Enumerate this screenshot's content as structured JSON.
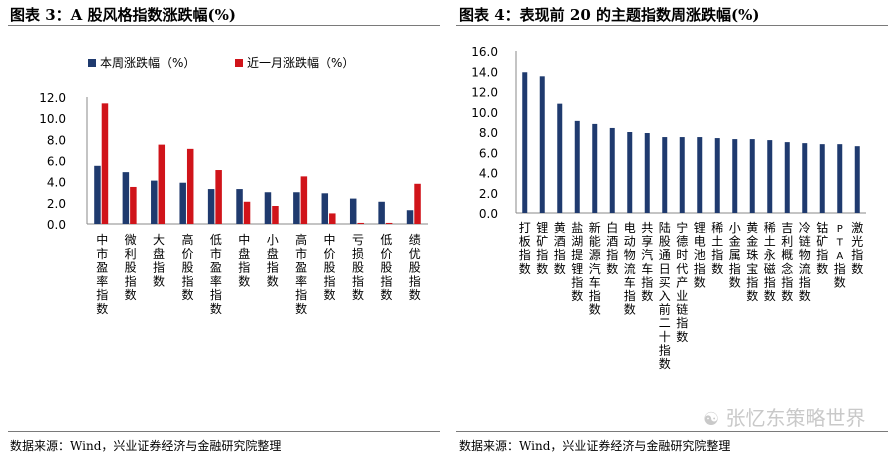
{
  "left_title": "图表 3：A 股风格指数涨跌幅(%)",
  "right_title": "图表 4：表现前 20 的主题指数周涨跌幅(%)",
  "left_source": "数据来源：Wind，兴业证券经济与金融研究院整理",
  "right_source": "数据来源：Wind，兴业证券经济与金融研究院整理",
  "watermark": "张忆东策略世界",
  "colors": {
    "navy": "#1f3a6e",
    "red": "#d0141a",
    "axis": "#888888"
  },
  "chart_data": [
    {
      "type": "bar",
      "categories": [
        "中市盈率指数",
        "微利股指数",
        "大盘指数",
        "高价股指数",
        "低市盈率指数",
        "中盘指数",
        "小盘指数",
        "高市盈率指数",
        "中价股指数",
        "亏损股指数",
        "低价股指数",
        "绩优股指数"
      ],
      "series": [
        {
          "name": "本周涨跌幅（%）",
          "values": [
            5.5,
            4.9,
            4.1,
            3.9,
            3.3,
            3.3,
            3.0,
            3.0,
            2.9,
            2.4,
            2.1,
            1.3
          ]
        },
        {
          "name": "近一月涨跌幅（%）",
          "values": [
            11.4,
            3.5,
            7.5,
            7.1,
            5.1,
            2.1,
            1.7,
            4.5,
            1.0,
            0.1,
            0.1,
            3.8
          ]
        }
      ],
      "yticks": [
        "0.0",
        "2.0",
        "4.0",
        "6.0",
        "8.0",
        "10.0",
        "12.0"
      ],
      "ylim": [
        0,
        12
      ],
      "legend": "top-left"
    },
    {
      "type": "bar",
      "categories": [
        "打板指数",
        "锂矿指数",
        "黄酒指数",
        "盐湖提锂指数",
        "新能源汽车指数",
        "白酒指数",
        "电动物流车指数",
        "共享汽车指数",
        "陆股通日买入前二十指数",
        "宁德时代产业链指数",
        "锂电池指数",
        "稀土指数",
        "小金属指数",
        "黄金珠宝指数",
        "稀土永磁指数",
        "吉利概念指数",
        "冷链物流指数",
        "钴矿指数",
        "PTA指数",
        "激光指数"
      ],
      "series": [
        {
          "values": [
            13.9,
            13.5,
            10.8,
            9.1,
            8.8,
            8.4,
            8.0,
            7.9,
            7.5,
            7.5,
            7.5,
            7.4,
            7.3,
            7.3,
            7.2,
            7.0,
            6.9,
            6.8,
            6.8,
            6.6
          ]
        }
      ],
      "yticks": [
        "0.0",
        "2.0",
        "4.0",
        "6.0",
        "8.0",
        "10.0",
        "12.0",
        "14.0",
        "16.0"
      ],
      "ylim": [
        0,
        16
      ]
    }
  ]
}
